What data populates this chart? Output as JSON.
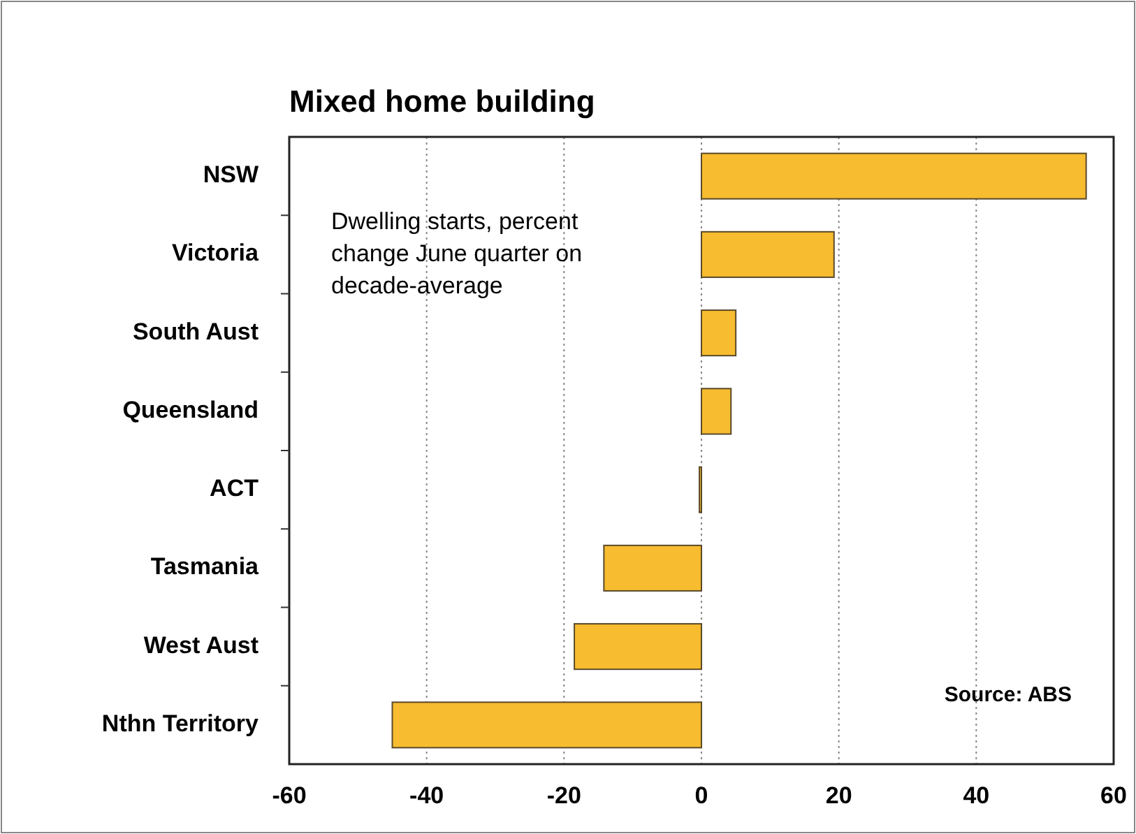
{
  "chart_data": {
    "type": "bar",
    "orientation": "horizontal",
    "title": "Mixed home building",
    "categories": [
      "NSW",
      "Victoria",
      "South Aust",
      "Queensland",
      "ACT",
      "Tasmania",
      "West Aust",
      "Nthn Territory"
    ],
    "values": [
      56,
      19.3,
      5,
      4.3,
      -0.3,
      -14.2,
      -18.5,
      -45
    ],
    "color": "#f7bc2f",
    "xlim": [
      -60,
      60
    ],
    "xticks": [
      -60,
      -40,
      -20,
      0,
      20,
      40,
      60
    ],
    "grid": "x",
    "annotations": [
      "Dwelling starts, percent\nchange June quarter on\ndecade-average",
      "Source: ABS"
    ]
  }
}
